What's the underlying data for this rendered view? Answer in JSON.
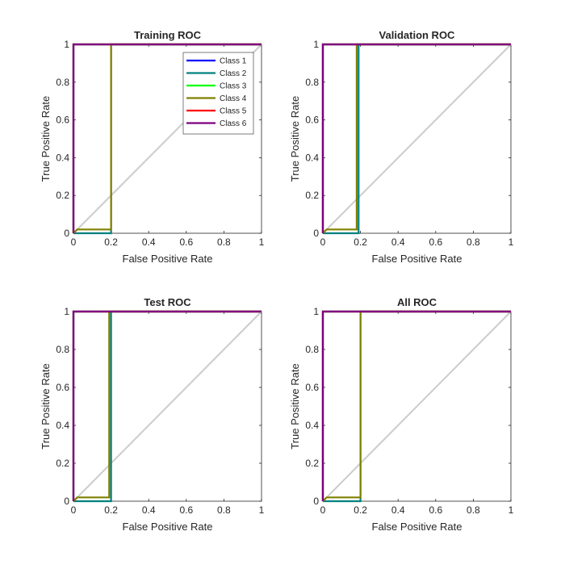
{
  "chart_data": [
    {
      "type": "line",
      "title": "Training ROC",
      "xlabel": "False Positive Rate",
      "ylabel": "True Positive Rate",
      "xlim": [
        0,
        1
      ],
      "ylim": [
        0,
        1
      ],
      "xticks": [
        "0",
        "0.2",
        "0.4",
        "0.6",
        "0.8",
        "1"
      ],
      "yticks": [
        "0",
        "0.2",
        "0.4",
        "0.6",
        "0.8",
        "1"
      ],
      "grid": false,
      "legend": "top-right",
      "diagonal": {
        "x": [
          0,
          1
        ],
        "y": [
          0,
          1
        ],
        "color": "#cccccc"
      },
      "series": [
        {
          "name": "Class 1",
          "color": "#0000ff",
          "x": [
            0,
            0,
            1
          ],
          "y": [
            0,
            1,
            1
          ]
        },
        {
          "name": "Class 2",
          "color": "#008080",
          "x": [
            0,
            0.2,
            0.2,
            1
          ],
          "y": [
            0,
            0,
            1,
            1
          ]
        },
        {
          "name": "Class 3",
          "color": "#00ff00",
          "x": [
            0,
            0,
            1
          ],
          "y": [
            0,
            1,
            1
          ]
        },
        {
          "name": "Class 4",
          "color": "#808000",
          "x": [
            0,
            0.02,
            0.2,
            0.2,
            1
          ],
          "y": [
            0,
            0.02,
            0.02,
            1,
            1
          ]
        },
        {
          "name": "Class 5",
          "color": "#ff0000",
          "x": [
            0,
            0,
            1
          ],
          "y": [
            0,
            1,
            1
          ]
        },
        {
          "name": "Class 6",
          "color": "#800080",
          "x": [
            0,
            0,
            1
          ],
          "y": [
            0,
            1,
            1
          ]
        }
      ]
    },
    {
      "type": "line",
      "title": "Validation ROC",
      "xlabel": "False Positive Rate",
      "ylabel": "True Positive Rate",
      "xlim": [
        0,
        1
      ],
      "ylim": [
        0,
        1
      ],
      "xticks": [
        "0",
        "0.2",
        "0.4",
        "0.6",
        "0.8",
        "1"
      ],
      "yticks": [
        "0",
        "0.2",
        "0.4",
        "0.6",
        "0.8",
        "1"
      ],
      "grid": false,
      "diagonal": {
        "x": [
          0,
          1
        ],
        "y": [
          0,
          1
        ],
        "color": "#cccccc"
      },
      "series": [
        {
          "name": "Class 1",
          "color": "#0000ff",
          "x": [
            0,
            0,
            1
          ],
          "y": [
            0,
            1,
            1
          ]
        },
        {
          "name": "Class 2",
          "color": "#008080",
          "x": [
            0,
            0.19,
            0.19,
            1
          ],
          "y": [
            0,
            0,
            1,
            1
          ]
        },
        {
          "name": "Class 3",
          "color": "#00ff00",
          "x": [
            0,
            0,
            1
          ],
          "y": [
            0,
            1,
            1
          ]
        },
        {
          "name": "Class 4",
          "color": "#808000",
          "x": [
            0,
            0.02,
            0.18,
            0.18,
            1
          ],
          "y": [
            0,
            0.02,
            0.02,
            1,
            1
          ]
        },
        {
          "name": "Class 5",
          "color": "#ff0000",
          "x": [
            0,
            0,
            1
          ],
          "y": [
            0,
            1,
            1
          ]
        },
        {
          "name": "Class 6",
          "color": "#800080",
          "x": [
            0,
            0,
            1
          ],
          "y": [
            0,
            1,
            1
          ]
        }
      ]
    },
    {
      "type": "line",
      "title": "Test ROC",
      "xlabel": "False Positive Rate",
      "ylabel": "True Positive Rate",
      "xlim": [
        0,
        1
      ],
      "ylim": [
        0,
        1
      ],
      "xticks": [
        "0",
        "0.2",
        "0.4",
        "0.6",
        "0.8",
        "1"
      ],
      "yticks": [
        "0",
        "0.2",
        "0.4",
        "0.6",
        "0.8",
        "1"
      ],
      "grid": false,
      "diagonal": {
        "x": [
          0,
          1
        ],
        "y": [
          0,
          1
        ],
        "color": "#cccccc"
      },
      "series": [
        {
          "name": "Class 1",
          "color": "#0000ff",
          "x": [
            0,
            0,
            1
          ],
          "y": [
            0,
            1,
            1
          ]
        },
        {
          "name": "Class 2",
          "color": "#008080",
          "x": [
            0,
            0.2,
            0.2,
            1
          ],
          "y": [
            0,
            0,
            1,
            1
          ]
        },
        {
          "name": "Class 3",
          "color": "#00ff00",
          "x": [
            0,
            0,
            1
          ],
          "y": [
            0,
            1,
            1
          ]
        },
        {
          "name": "Class 4",
          "color": "#808000",
          "x": [
            0,
            0.02,
            0.19,
            0.19,
            1
          ],
          "y": [
            0,
            0.02,
            0.02,
            1,
            1
          ]
        },
        {
          "name": "Class 5",
          "color": "#ff0000",
          "x": [
            0,
            0,
            1
          ],
          "y": [
            0,
            1,
            1
          ]
        },
        {
          "name": "Class 6",
          "color": "#800080",
          "x": [
            0,
            0,
            1
          ],
          "y": [
            0,
            1,
            1
          ]
        }
      ]
    },
    {
      "type": "line",
      "title": "All ROC",
      "xlabel": "False Positive Rate",
      "ylabel": "True Positive Rate",
      "xlim": [
        0,
        1
      ],
      "ylim": [
        0,
        1
      ],
      "xticks": [
        "0",
        "0.2",
        "0.4",
        "0.6",
        "0.8",
        "1"
      ],
      "yticks": [
        "0",
        "0.2",
        "0.4",
        "0.6",
        "0.8",
        "1"
      ],
      "grid": false,
      "diagonal": {
        "x": [
          0,
          1
        ],
        "y": [
          0,
          1
        ],
        "color": "#cccccc"
      },
      "series": [
        {
          "name": "Class 1",
          "color": "#0000ff",
          "x": [
            0,
            0,
            1
          ],
          "y": [
            0,
            1,
            1
          ]
        },
        {
          "name": "Class 2",
          "color": "#008080",
          "x": [
            0,
            0.2,
            0.2,
            1
          ],
          "y": [
            0,
            0,
            1,
            1
          ]
        },
        {
          "name": "Class 3",
          "color": "#00ff00",
          "x": [
            0,
            0,
            1
          ],
          "y": [
            0,
            1,
            1
          ]
        },
        {
          "name": "Class 4",
          "color": "#808000",
          "x": [
            0,
            0.02,
            0.2,
            0.2,
            1
          ],
          "y": [
            0,
            0.02,
            0.02,
            1,
            1
          ]
        },
        {
          "name": "Class 5",
          "color": "#ff0000",
          "x": [
            0,
            0,
            1
          ],
          "y": [
            0,
            1,
            1
          ]
        },
        {
          "name": "Class 6",
          "color": "#800080",
          "x": [
            0,
            0,
            1
          ],
          "y": [
            0,
            1,
            1
          ]
        }
      ]
    }
  ]
}
